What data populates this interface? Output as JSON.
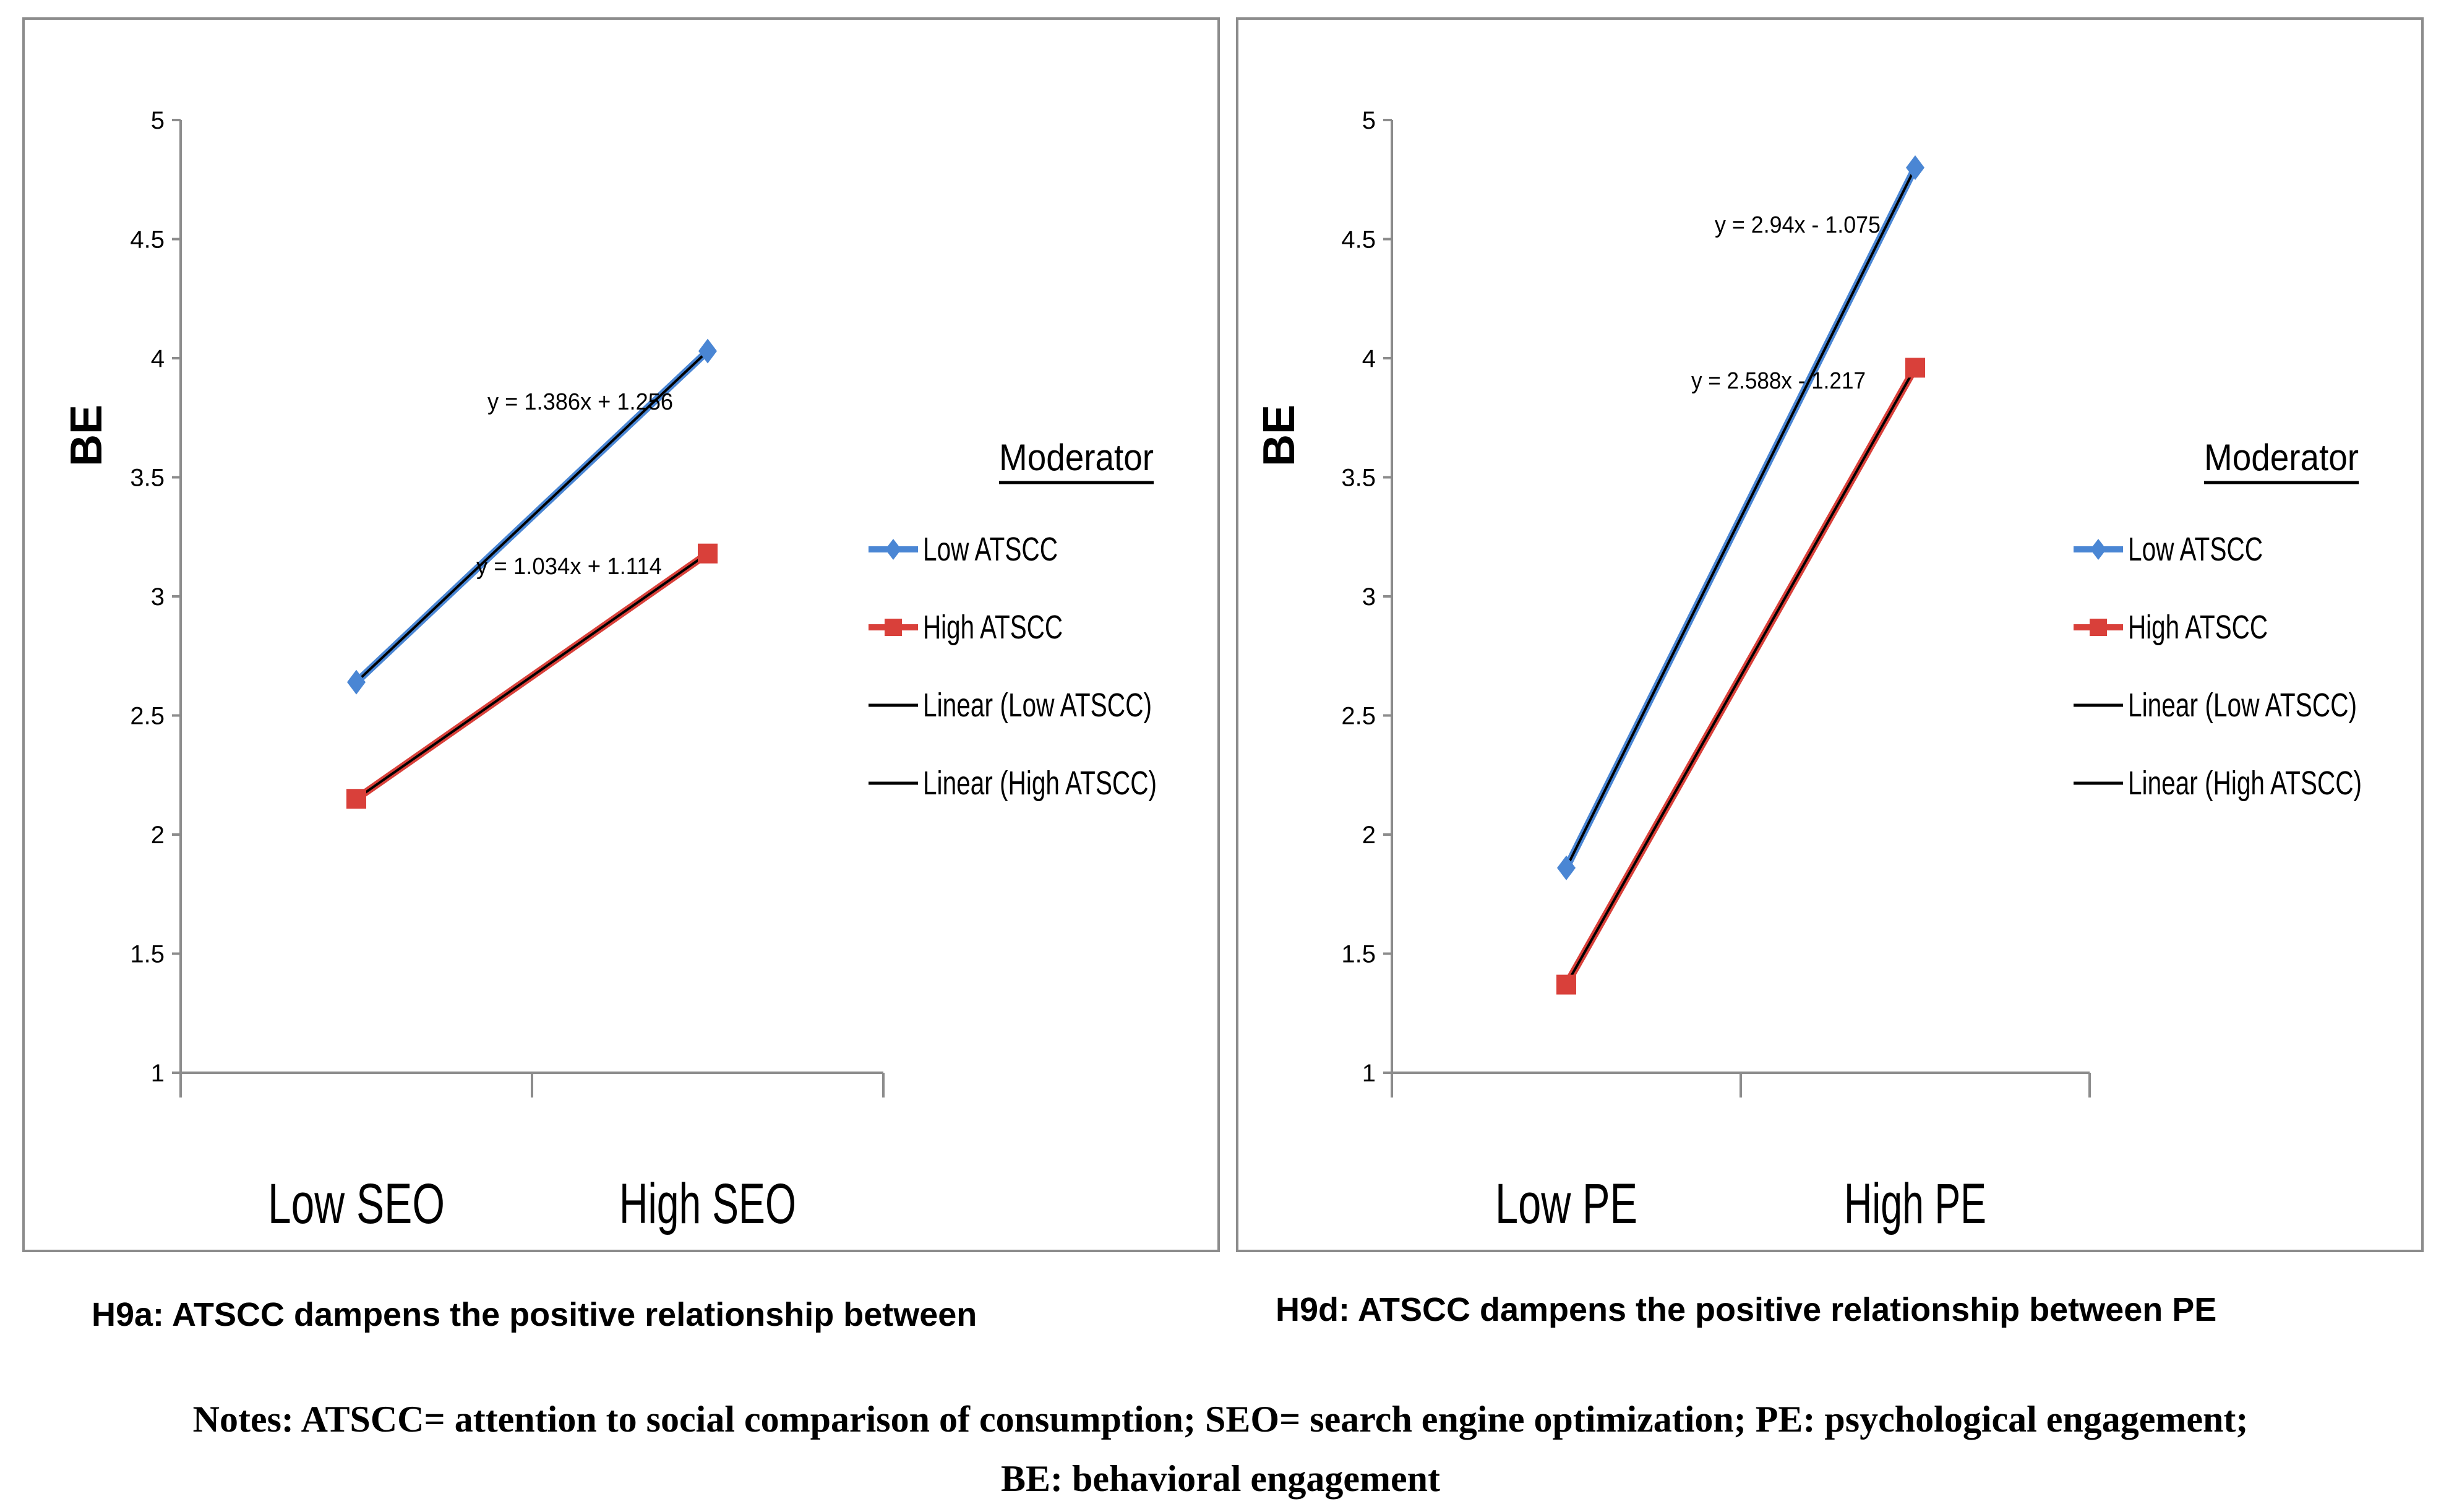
{
  "colors": {
    "low": "#4a86d4",
    "high": "#d9403a",
    "trend": "#000000",
    "axis": "#8c8c8c"
  },
  "chart_data": [
    {
      "type": "line",
      "id": "h9a",
      "ylabel": "BE",
      "ylim": [
        1,
        5
      ],
      "yticks": [
        "1",
        "1.5",
        "2",
        "2.5",
        "3",
        "3.5",
        "4",
        "4.5",
        "5"
      ],
      "categories": [
        "Low SEO",
        "High SEO"
      ],
      "series": [
        {
          "name": "Low ATSCC",
          "values": [
            2.64,
            4.03
          ],
          "equation": "y = 1.386x + 1.256"
        },
        {
          "name": "High ATSCC",
          "values": [
            2.15,
            3.18
          ],
          "equation": "y = 1.034x + 1.114"
        }
      ],
      "legend_title": "Moderator",
      "legend_items": [
        "Low ATSCC",
        "High ATSCC",
        "Linear (Low ATSCC)",
        "Linear (High ATSCC)"
      ]
    },
    {
      "type": "line",
      "id": "h9d",
      "ylabel": "BE",
      "ylim": [
        1,
        5
      ],
      "yticks": [
        "1",
        "1.5",
        "2",
        "2.5",
        "3",
        "3.5",
        "4",
        "4.5",
        "5"
      ],
      "categories": [
        "Low PE",
        "High PE"
      ],
      "series": [
        {
          "name": "Low ATSCC",
          "values": [
            1.86,
            4.8
          ],
          "equation": "y = 2.94x - 1.075"
        },
        {
          "name": "High ATSCC",
          "values": [
            1.37,
            3.96
          ],
          "equation": "y = 2.588x - 1.217"
        }
      ],
      "legend_title": "Moderator",
      "legend_items": [
        "Low ATSCC",
        "High ATSCC",
        "Linear (Low ATSCC)",
        "Linear (High ATSCC)"
      ]
    }
  ],
  "captions": {
    "left": "H9a:  ATSCC  dampens  the  positive  relationship  between",
    "right": "H9d: ATSCC dampens the positive relationship between PE"
  },
  "notes": {
    "line1": "Notes: ATSCC= attention to social comparison of consumption; SEO= search engine optimization; PE: psychological engagement;",
    "line2": "BE: behavioral engagement"
  }
}
